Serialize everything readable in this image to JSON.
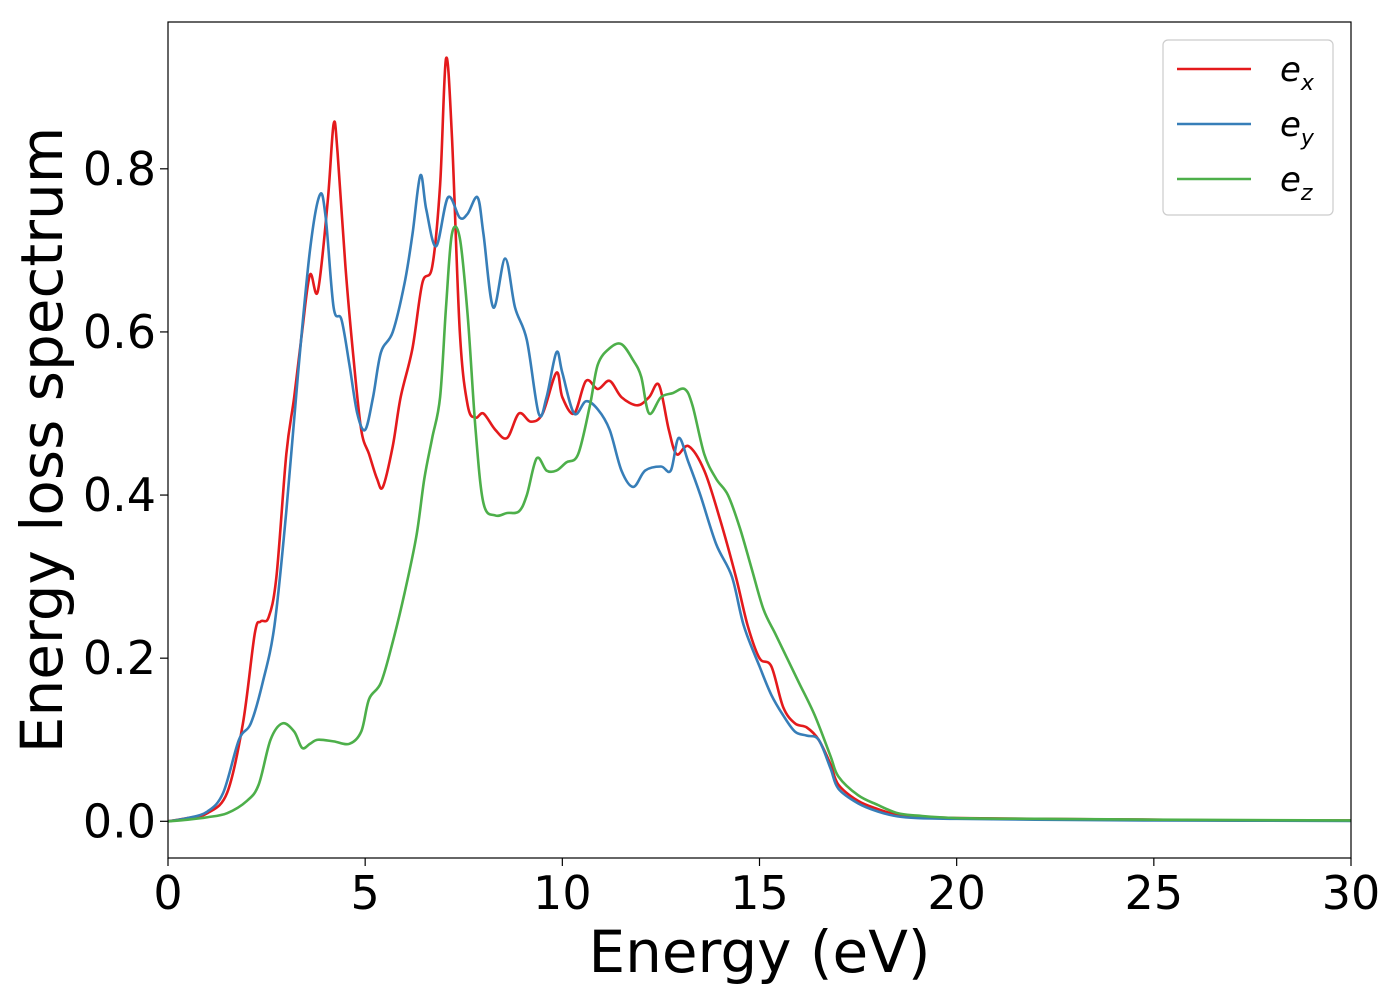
{
  "chart_data": {
    "type": "line",
    "title": "",
    "xlabel": "Energy (eV)",
    "ylabel": "Energy loss spectrum",
    "xlim": [
      0,
      30
    ],
    "ylim": [
      -0.045,
      0.98
    ],
    "xticks": [
      0,
      5,
      10,
      15,
      20,
      25,
      30
    ],
    "xtick_labels": [
      "0",
      "5",
      "10",
      "15",
      "20",
      "25",
      "30"
    ],
    "yticks": [
      0.0,
      0.2,
      0.4,
      0.6,
      0.8
    ],
    "ytick_labels": [
      "0.0",
      "0.2",
      "0.4",
      "0.6",
      "0.8"
    ],
    "grid": false,
    "legend_position": "top-right",
    "series": [
      {
        "name": "e_x",
        "label_base": "e",
        "label_sub": "x",
        "color": "#e41a1c",
        "points": [
          [
            0,
            0
          ],
          [
            0.5,
            0.004
          ],
          [
            1.0,
            0.01
          ],
          [
            1.5,
            0.035
          ],
          [
            1.9,
            0.12
          ],
          [
            2.2,
            0.23
          ],
          [
            2.35,
            0.245
          ],
          [
            2.55,
            0.25
          ],
          [
            2.75,
            0.3
          ],
          [
            3.0,
            0.45
          ],
          [
            3.2,
            0.52
          ],
          [
            3.4,
            0.6
          ],
          [
            3.6,
            0.67
          ],
          [
            3.8,
            0.65
          ],
          [
            4.05,
            0.76
          ],
          [
            4.2,
            0.855
          ],
          [
            4.3,
            0.82
          ],
          [
            4.5,
            0.68
          ],
          [
            4.7,
            0.57
          ],
          [
            4.9,
            0.48
          ],
          [
            5.1,
            0.45
          ],
          [
            5.3,
            0.42
          ],
          [
            5.45,
            0.41
          ],
          [
            5.7,
            0.46
          ],
          [
            5.9,
            0.52
          ],
          [
            6.2,
            0.58
          ],
          [
            6.45,
            0.66
          ],
          [
            6.7,
            0.68
          ],
          [
            6.9,
            0.78
          ],
          [
            7.05,
            0.935
          ],
          [
            7.2,
            0.84
          ],
          [
            7.4,
            0.6
          ],
          [
            7.6,
            0.51
          ],
          [
            7.8,
            0.495
          ],
          [
            8.0,
            0.5
          ],
          [
            8.3,
            0.48
          ],
          [
            8.6,
            0.47
          ],
          [
            8.9,
            0.5
          ],
          [
            9.2,
            0.49
          ],
          [
            9.5,
            0.5
          ],
          [
            9.85,
            0.55
          ],
          [
            10.0,
            0.52
          ],
          [
            10.3,
            0.5
          ],
          [
            10.6,
            0.54
          ],
          [
            10.9,
            0.53
          ],
          [
            11.2,
            0.54
          ],
          [
            11.5,
            0.52
          ],
          [
            11.9,
            0.51
          ],
          [
            12.2,
            0.52
          ],
          [
            12.45,
            0.535
          ],
          [
            12.7,
            0.48
          ],
          [
            12.9,
            0.45
          ],
          [
            13.2,
            0.46
          ],
          [
            13.6,
            0.43
          ],
          [
            14.0,
            0.37
          ],
          [
            14.4,
            0.3
          ],
          [
            14.7,
            0.24
          ],
          [
            15.0,
            0.2
          ],
          [
            15.3,
            0.19
          ],
          [
            15.6,
            0.14
          ],
          [
            15.9,
            0.12
          ],
          [
            16.2,
            0.115
          ],
          [
            16.5,
            0.1
          ],
          [
            16.8,
            0.07
          ],
          [
            17.0,
            0.045
          ],
          [
            17.5,
            0.025
          ],
          [
            18.0,
            0.015
          ],
          [
            18.5,
            0.008
          ],
          [
            19.0,
            0.006
          ],
          [
            20,
            0.004
          ],
          [
            22,
            0.003
          ],
          [
            25,
            0.002
          ],
          [
            27,
            0.001
          ],
          [
            30,
            0.001
          ]
        ]
      },
      {
        "name": "e_y",
        "label_base": "e",
        "label_sub": "y",
        "color": "#377eb8",
        "points": [
          [
            0,
            0
          ],
          [
            0.5,
            0.004
          ],
          [
            1.0,
            0.012
          ],
          [
            1.4,
            0.035
          ],
          [
            1.8,
            0.1
          ],
          [
            2.1,
            0.12
          ],
          [
            2.4,
            0.17
          ],
          [
            2.7,
            0.24
          ],
          [
            3.0,
            0.38
          ],
          [
            3.3,
            0.55
          ],
          [
            3.6,
            0.7
          ],
          [
            3.85,
            0.768
          ],
          [
            4.0,
            0.74
          ],
          [
            4.2,
            0.63
          ],
          [
            4.4,
            0.615
          ],
          [
            4.6,
            0.56
          ],
          [
            4.8,
            0.5
          ],
          [
            5.0,
            0.48
          ],
          [
            5.2,
            0.52
          ],
          [
            5.4,
            0.575
          ],
          [
            5.7,
            0.6
          ],
          [
            6.0,
            0.66
          ],
          [
            6.2,
            0.72
          ],
          [
            6.4,
            0.792
          ],
          [
            6.55,
            0.75
          ],
          [
            6.8,
            0.705
          ],
          [
            7.1,
            0.765
          ],
          [
            7.4,
            0.74
          ],
          [
            7.6,
            0.745
          ],
          [
            7.85,
            0.765
          ],
          [
            8.0,
            0.72
          ],
          [
            8.25,
            0.63
          ],
          [
            8.55,
            0.69
          ],
          [
            8.8,
            0.63
          ],
          [
            9.1,
            0.59
          ],
          [
            9.4,
            0.5
          ],
          [
            9.6,
            0.52
          ],
          [
            9.85,
            0.575
          ],
          [
            10.0,
            0.55
          ],
          [
            10.3,
            0.5
          ],
          [
            10.6,
            0.515
          ],
          [
            10.9,
            0.505
          ],
          [
            11.2,
            0.48
          ],
          [
            11.5,
            0.43
          ],
          [
            11.8,
            0.41
          ],
          [
            12.1,
            0.43
          ],
          [
            12.5,
            0.435
          ],
          [
            12.75,
            0.43
          ],
          [
            12.95,
            0.47
          ],
          [
            13.2,
            0.44
          ],
          [
            13.5,
            0.4
          ],
          [
            13.9,
            0.34
          ],
          [
            14.3,
            0.3
          ],
          [
            14.6,
            0.24
          ],
          [
            15.0,
            0.19
          ],
          [
            15.3,
            0.155
          ],
          [
            15.6,
            0.13
          ],
          [
            15.9,
            0.11
          ],
          [
            16.2,
            0.105
          ],
          [
            16.5,
            0.1
          ],
          [
            16.8,
            0.065
          ],
          [
            17.0,
            0.04
          ],
          [
            17.5,
            0.022
          ],
          [
            18.0,
            0.012
          ],
          [
            18.5,
            0.006
          ],
          [
            19.0,
            0.004
          ],
          [
            20,
            0.003
          ],
          [
            22,
            0.002
          ],
          [
            25,
            0.001
          ],
          [
            30,
            0.0005
          ]
        ]
      },
      {
        "name": "e_z",
        "label_base": "e",
        "label_sub": "z",
        "color": "#4daf4a",
        "points": [
          [
            0,
            0
          ],
          [
            0.5,
            0.002
          ],
          [
            1.0,
            0.005
          ],
          [
            1.5,
            0.01
          ],
          [
            2.0,
            0.025
          ],
          [
            2.3,
            0.045
          ],
          [
            2.6,
            0.1
          ],
          [
            2.9,
            0.12
          ],
          [
            3.2,
            0.11
          ],
          [
            3.4,
            0.09
          ],
          [
            3.6,
            0.095
          ],
          [
            3.8,
            0.1
          ],
          [
            4.2,
            0.098
          ],
          [
            4.6,
            0.095
          ],
          [
            4.9,
            0.11
          ],
          [
            5.1,
            0.15
          ],
          [
            5.4,
            0.17
          ],
          [
            5.7,
            0.22
          ],
          [
            6.0,
            0.28
          ],
          [
            6.3,
            0.35
          ],
          [
            6.5,
            0.42
          ],
          [
            6.7,
            0.47
          ],
          [
            6.9,
            0.52
          ],
          [
            7.05,
            0.63
          ],
          [
            7.2,
            0.72
          ],
          [
            7.4,
            0.715
          ],
          [
            7.6,
            0.62
          ],
          [
            7.8,
            0.48
          ],
          [
            8.0,
            0.39
          ],
          [
            8.3,
            0.375
          ],
          [
            8.6,
            0.378
          ],
          [
            8.9,
            0.38
          ],
          [
            9.1,
            0.4
          ],
          [
            9.35,
            0.445
          ],
          [
            9.6,
            0.43
          ],
          [
            9.85,
            0.43
          ],
          [
            10.1,
            0.44
          ],
          [
            10.4,
            0.45
          ],
          [
            10.7,
            0.51
          ],
          [
            10.9,
            0.56
          ],
          [
            11.2,
            0.58
          ],
          [
            11.5,
            0.585
          ],
          [
            11.8,
            0.565
          ],
          [
            12.0,
            0.545
          ],
          [
            12.2,
            0.5
          ],
          [
            12.5,
            0.52
          ],
          [
            12.8,
            0.525
          ],
          [
            13.1,
            0.53
          ],
          [
            13.3,
            0.51
          ],
          [
            13.6,
            0.45
          ],
          [
            13.9,
            0.42
          ],
          [
            14.2,
            0.4
          ],
          [
            14.5,
            0.36
          ],
          [
            14.8,
            0.31
          ],
          [
            15.1,
            0.26
          ],
          [
            15.4,
            0.23
          ],
          [
            15.7,
            0.2
          ],
          [
            16.0,
            0.17
          ],
          [
            16.4,
            0.13
          ],
          [
            16.8,
            0.08
          ],
          [
            17.0,
            0.055
          ],
          [
            17.5,
            0.032
          ],
          [
            18.0,
            0.02
          ],
          [
            18.5,
            0.01
          ],
          [
            19.0,
            0.007
          ],
          [
            20,
            0.004
          ],
          [
            22,
            0.003
          ],
          [
            25,
            0.002
          ],
          [
            30,
            0.001
          ]
        ]
      }
    ]
  }
}
